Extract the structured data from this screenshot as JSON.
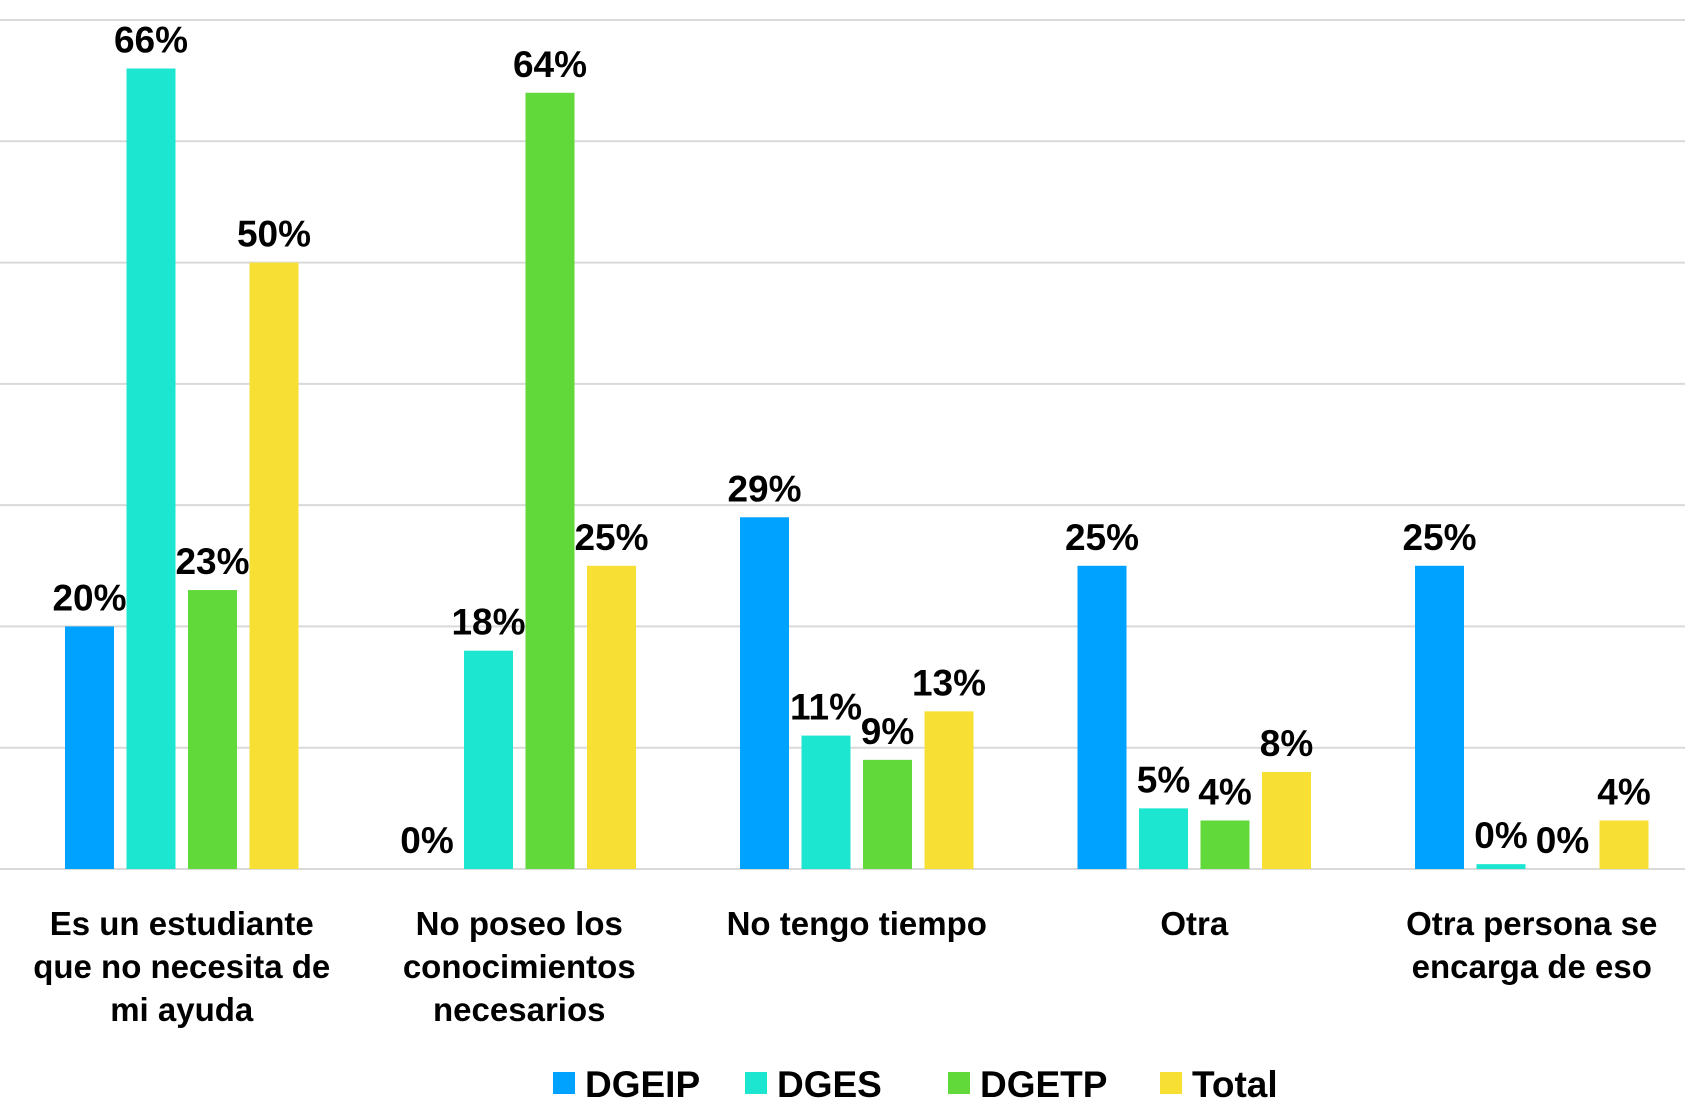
{
  "chart_data": {
    "type": "bar",
    "categories": [
      "Es un estudiante que no necesita de mi ayuda",
      "No poseo los conocimientos necesarios",
      "No tengo tiempo",
      "Otra",
      "Otra persona se encarga de eso"
    ],
    "category_lines": [
      [
        "Es un estudiante",
        "que no necesita de",
        "mi ayuda"
      ],
      [
        "No poseo los",
        "conocimientos",
        "necesarios"
      ],
      [
        "No tengo tiempo"
      ],
      [
        "Otra"
      ],
      [
        "Otra persona se",
        "encarga de eso"
      ]
    ],
    "series": [
      {
        "name": "DGEIP",
        "color": "#00a2ff",
        "values": [
          20,
          0,
          29,
          25,
          25
        ],
        "labels": [
          "20%",
          "0%",
          "29%",
          "25%",
          "25%"
        ]
      },
      {
        "name": "DGES",
        "color": "#1ce6d0",
        "values": [
          66,
          18,
          11,
          5,
          0.4
        ],
        "labels": [
          "66%",
          "18%",
          "11%",
          "5%",
          "0%"
        ]
      },
      {
        "name": "DGETP",
        "color": "#62d93a",
        "values": [
          23,
          64,
          9,
          4,
          0
        ],
        "labels": [
          "23%",
          "64%",
          "9%",
          "4%",
          "0%"
        ]
      },
      {
        "name": "Total",
        "color": "#f7df33",
        "values": [
          50,
          25,
          13,
          8,
          4
        ],
        "labels": [
          "50%",
          "25%",
          "13%",
          "8%",
          "4%"
        ]
      }
    ],
    "ylim": [
      0,
      70
    ],
    "grid": true,
    "legend_position": "bottom"
  }
}
